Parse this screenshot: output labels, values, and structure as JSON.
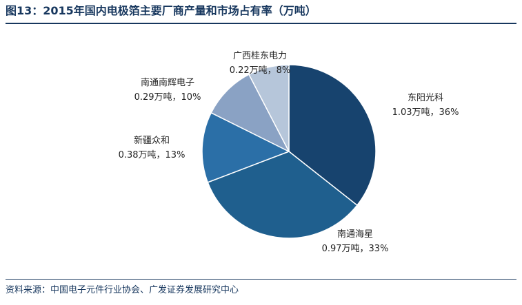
{
  "title": "图13：2015年国内电极箔主要厂商产量和市场占有率（万吨）",
  "source": "资料来源：中国电子元件行业协会、广发证券发展研究中心",
  "chart_data": {
    "type": "pie",
    "unit": "万吨",
    "slices": [
      {
        "name": "东阳光科",
        "value": 1.03,
        "value_label": "1.03万吨，36%",
        "percent": 36,
        "color": "#17436e"
      },
      {
        "name": "南通海星",
        "value": 0.97,
        "value_label": "0.97万吨，33%",
        "percent": 33,
        "color": "#1f5f8e"
      },
      {
        "name": "新疆众和",
        "value": 0.38,
        "value_label": "0.38万吨，13%",
        "percent": 13,
        "color": "#2b6fa7"
      },
      {
        "name": "南通南辉电子",
        "value": 0.29,
        "value_label": "0.29万吨，10%",
        "percent": 10,
        "color": "#8aa2c4"
      },
      {
        "name": "广西桂东电力",
        "value": 0.22,
        "value_label": "0.22万吨，8%",
        "percent": 8,
        "color": "#b6c6da"
      }
    ]
  }
}
